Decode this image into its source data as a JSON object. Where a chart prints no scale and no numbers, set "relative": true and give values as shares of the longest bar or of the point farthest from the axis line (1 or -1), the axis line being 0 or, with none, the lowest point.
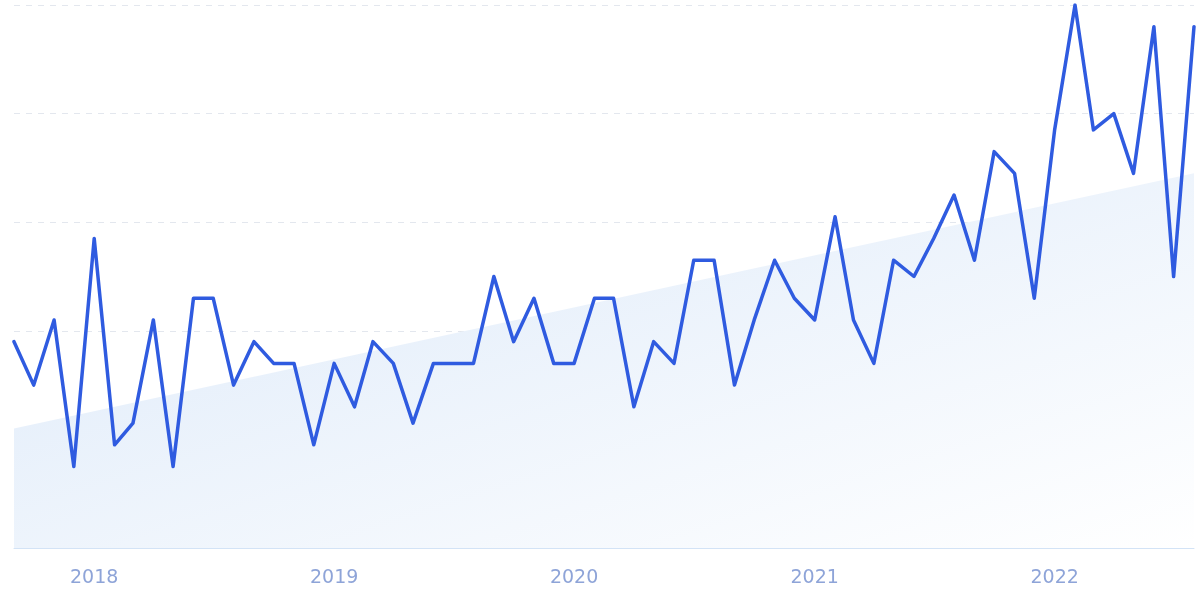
{
  "chart_data": {
    "type": "line",
    "relative": true,
    "grid": "y",
    "marker": "none",
    "line_style": "solid",
    "x": [
      "2017-09",
      "2017-10",
      "2017-11",
      "2017-12",
      "2018-01",
      "2018-02",
      "2018-03",
      "2018-04",
      "2018-05",
      "2018-06",
      "2018-07",
      "2018-08",
      "2018-09",
      "2018-10",
      "2018-11",
      "2018-12",
      "2019-01",
      "2019-02",
      "2019-03",
      "2019-04",
      "2019-05",
      "2019-06",
      "2019-07",
      "2019-08",
      "2019-09",
      "2019-10",
      "2019-11",
      "2019-12",
      "2020-01",
      "2020-02",
      "2020-03",
      "2020-04",
      "2020-05",
      "2020-06",
      "2020-07",
      "2020-08",
      "2020-09",
      "2020-10",
      "2020-11",
      "2020-12",
      "2021-01",
      "2021-02",
      "2021-03",
      "2021-04",
      "2021-05",
      "2021-06",
      "2021-07",
      "2021-08",
      "2021-09",
      "2021-10",
      "2021-11",
      "2021-12",
      "2022-01",
      "2022-02",
      "2022-03",
      "2022-04",
      "2022-05",
      "2022-06",
      "2022-07",
      "2022-08"
    ],
    "xlim": [
      "2017-09",
      "2022-08"
    ],
    "xticks": [
      {
        "value": "2018-01",
        "label": "2018"
      },
      {
        "value": "2019-01",
        "label": "2019"
      },
      {
        "value": "2020-01",
        "label": "2020"
      },
      {
        "value": "2021-01",
        "label": "2021"
      },
      {
        "value": "2022-01",
        "label": "2022"
      }
    ],
    "series": [
      {
        "type": "area",
        "color": "#dce9f9",
        "x": [
          "2017-09",
          "2022-08"
        ],
        "values": [
          0.22,
          0.69
        ]
      },
      {
        "color": "#2f5be0",
        "values": [
          0.38,
          0.3,
          0.42,
          0.15,
          0.57,
          0.19,
          0.23,
          0.42,
          0.15,
          0.46,
          0.46,
          0.3,
          0.38,
          0.34,
          0.34,
          0.19,
          0.34,
          0.26,
          0.38,
          0.34,
          0.23,
          0.34,
          0.34,
          0.34,
          0.5,
          0.38,
          0.46,
          0.34,
          0.34,
          0.46,
          0.46,
          0.26,
          0.38,
          0.34,
          0.53,
          0.53,
          0.3,
          0.42,
          0.53,
          0.46,
          0.42,
          0.61,
          0.42,
          0.34,
          0.53,
          0.5,
          0.57,
          0.65,
          0.53,
          0.73,
          0.69,
          0.46,
          0.77,
          1,
          0.77,
          0.8,
          0.69,
          0.96,
          0.5,
          0.96
        ]
      }
    ]
  }
}
